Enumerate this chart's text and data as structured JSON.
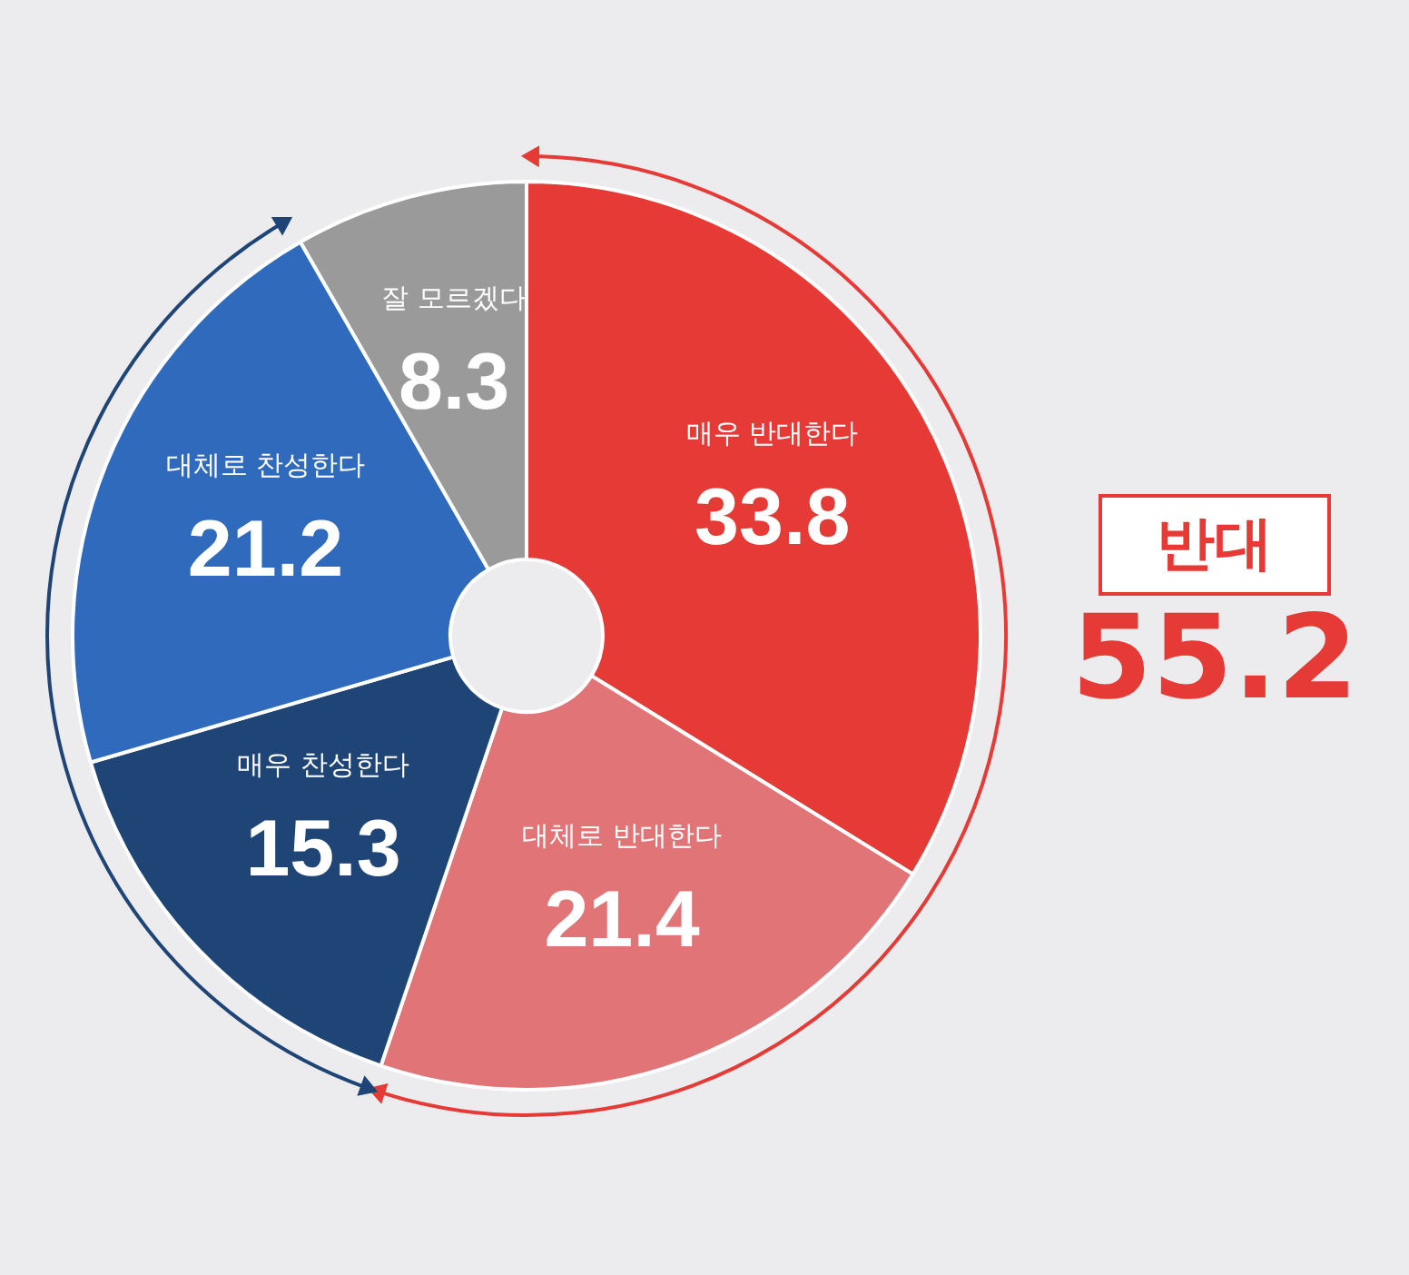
{
  "chart_data": {
    "type": "donut",
    "categories": [
      "매우 반대한다",
      "대체로 반대한다",
      "매우 찬성한다",
      "대체로 찬성한다",
      "잘 모르겠다"
    ],
    "values": [
      33.8,
      21.4,
      15.3,
      21.2,
      8.3
    ],
    "colors": [
      "#e53a35",
      "#e07477",
      "#1f4577",
      "#2f6abd",
      "#9a9a9a"
    ],
    "data_labels": true,
    "annotations": [
      "반대",
      "55.2"
    ]
  }
}
